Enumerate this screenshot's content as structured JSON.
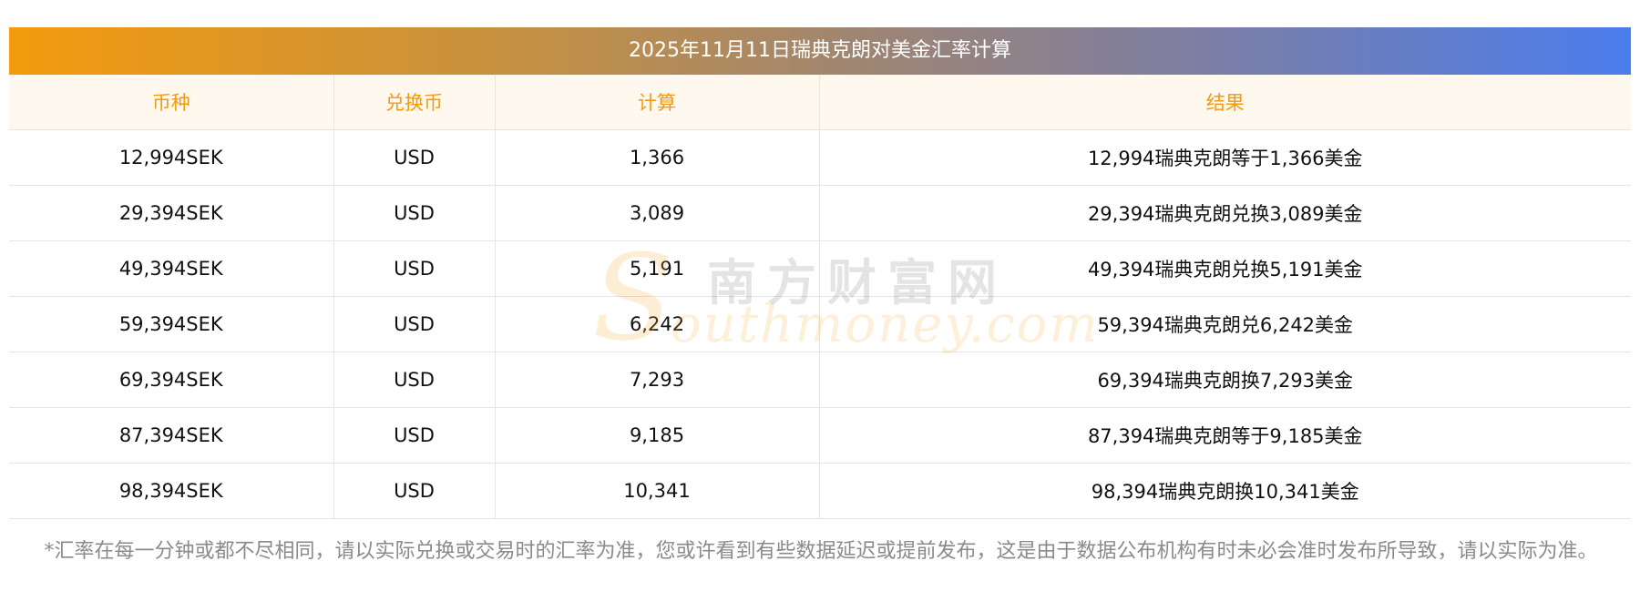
{
  "title": "2025年11月11日瑞典克朗对美金汇率计算",
  "columns": {
    "currency": "币种",
    "target": "兑换币",
    "calc": "计算",
    "result": "结果"
  },
  "rows": [
    {
      "currency": "12,994SEK",
      "target": "USD",
      "calc": "1,366",
      "result": "12,994瑞典克朗等于1,366美金"
    },
    {
      "currency": "29,394SEK",
      "target": "USD",
      "calc": "3,089",
      "result": "29,394瑞典克朗兑换3,089美金"
    },
    {
      "currency": "49,394SEK",
      "target": "USD",
      "calc": "5,191",
      "result": "49,394瑞典克朗兑换5,191美金"
    },
    {
      "currency": "59,394SEK",
      "target": "USD",
      "calc": "6,242",
      "result": "59,394瑞典克朗兑6,242美金"
    },
    {
      "currency": "69,394SEK",
      "target": "USD",
      "calc": "7,293",
      "result": "69,394瑞典克朗换7,293美金"
    },
    {
      "currency": "87,394SEK",
      "target": "USD",
      "calc": "9,185",
      "result": "87,394瑞典克朗等于9,185美金"
    },
    {
      "currency": "98,394SEK",
      "target": "USD",
      "calc": "10,341",
      "result": "98,394瑞典克朗换10,341美金"
    }
  ],
  "watermark": {
    "initial": "S",
    "chinese": "南方财富网",
    "english": "outhmoney.com"
  },
  "footnote": "*汇率在每一分钟或都不尽相同，请以实际兑换或交易时的汇率为准，您或许看到有些数据延迟或提前发布，这是由于数据公布机构有时未必会准时发布所导致，请以实际为准。",
  "colors": {
    "gradient_start": "#f39b0d",
    "gradient_end": "#4a7ded",
    "header_text": "#f39b0d",
    "header_bg": "#fff8ee",
    "footnote_text": "#8a8a8a"
  }
}
